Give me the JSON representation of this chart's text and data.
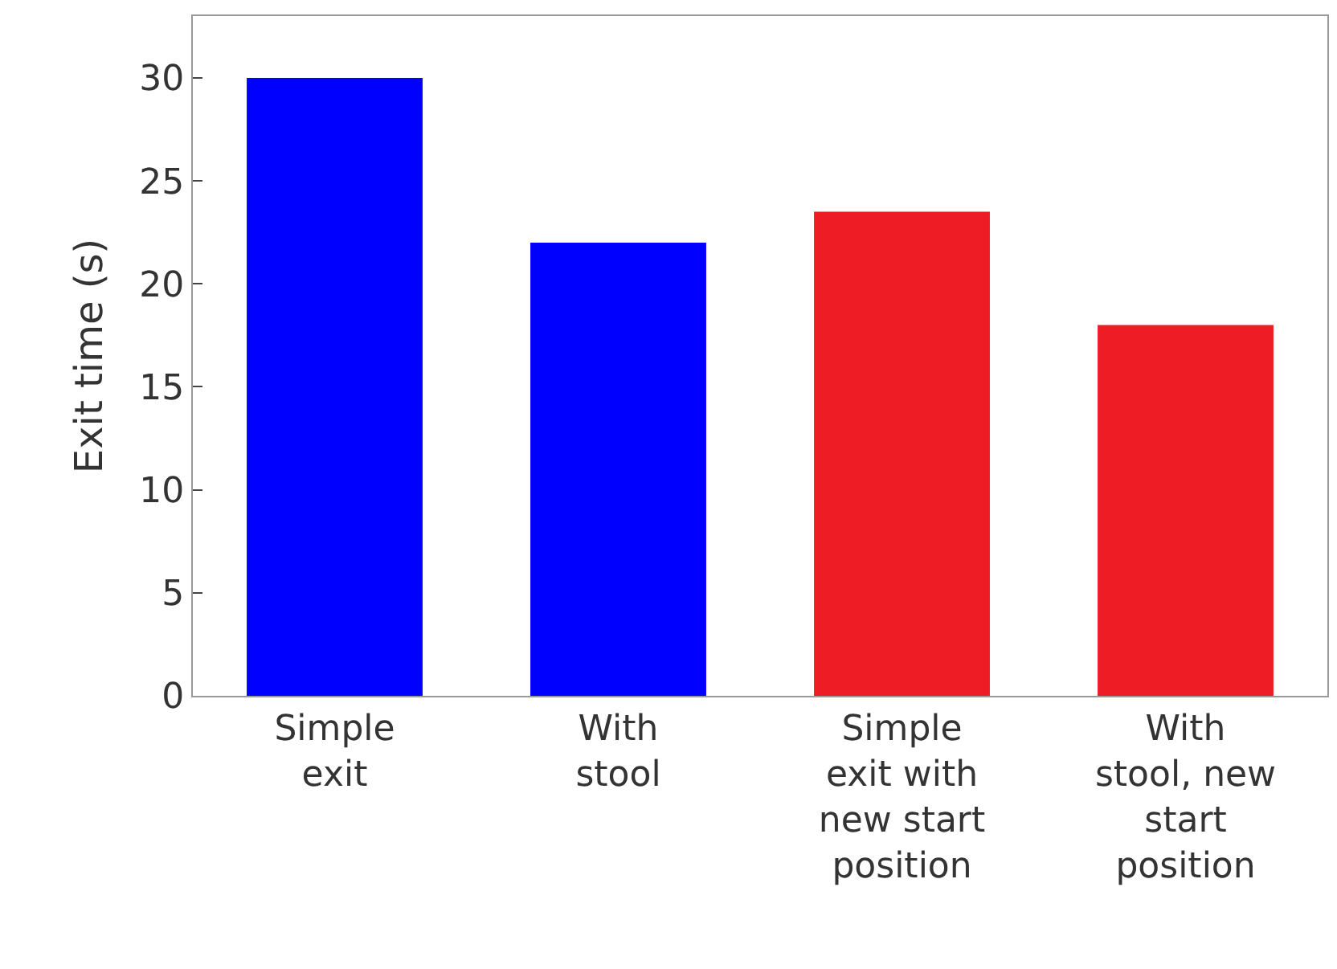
{
  "chart_data": {
    "type": "bar",
    "ylabel": "Exit time (s)",
    "categories": [
      "Simple\nexit",
      "With\nstool",
      "Simple\nexit with\nnew start\nposition",
      "With\nstool, new\nstart\nposition"
    ],
    "values": [
      30,
      22,
      23.5,
      18
    ],
    "colors": [
      "#0000ff",
      "#0000ff",
      "#ee1c24",
      "#ee1c24"
    ],
    "ylim": [
      0,
      33
    ],
    "yticks": [
      0,
      5,
      10,
      15,
      20,
      25,
      30
    ]
  }
}
